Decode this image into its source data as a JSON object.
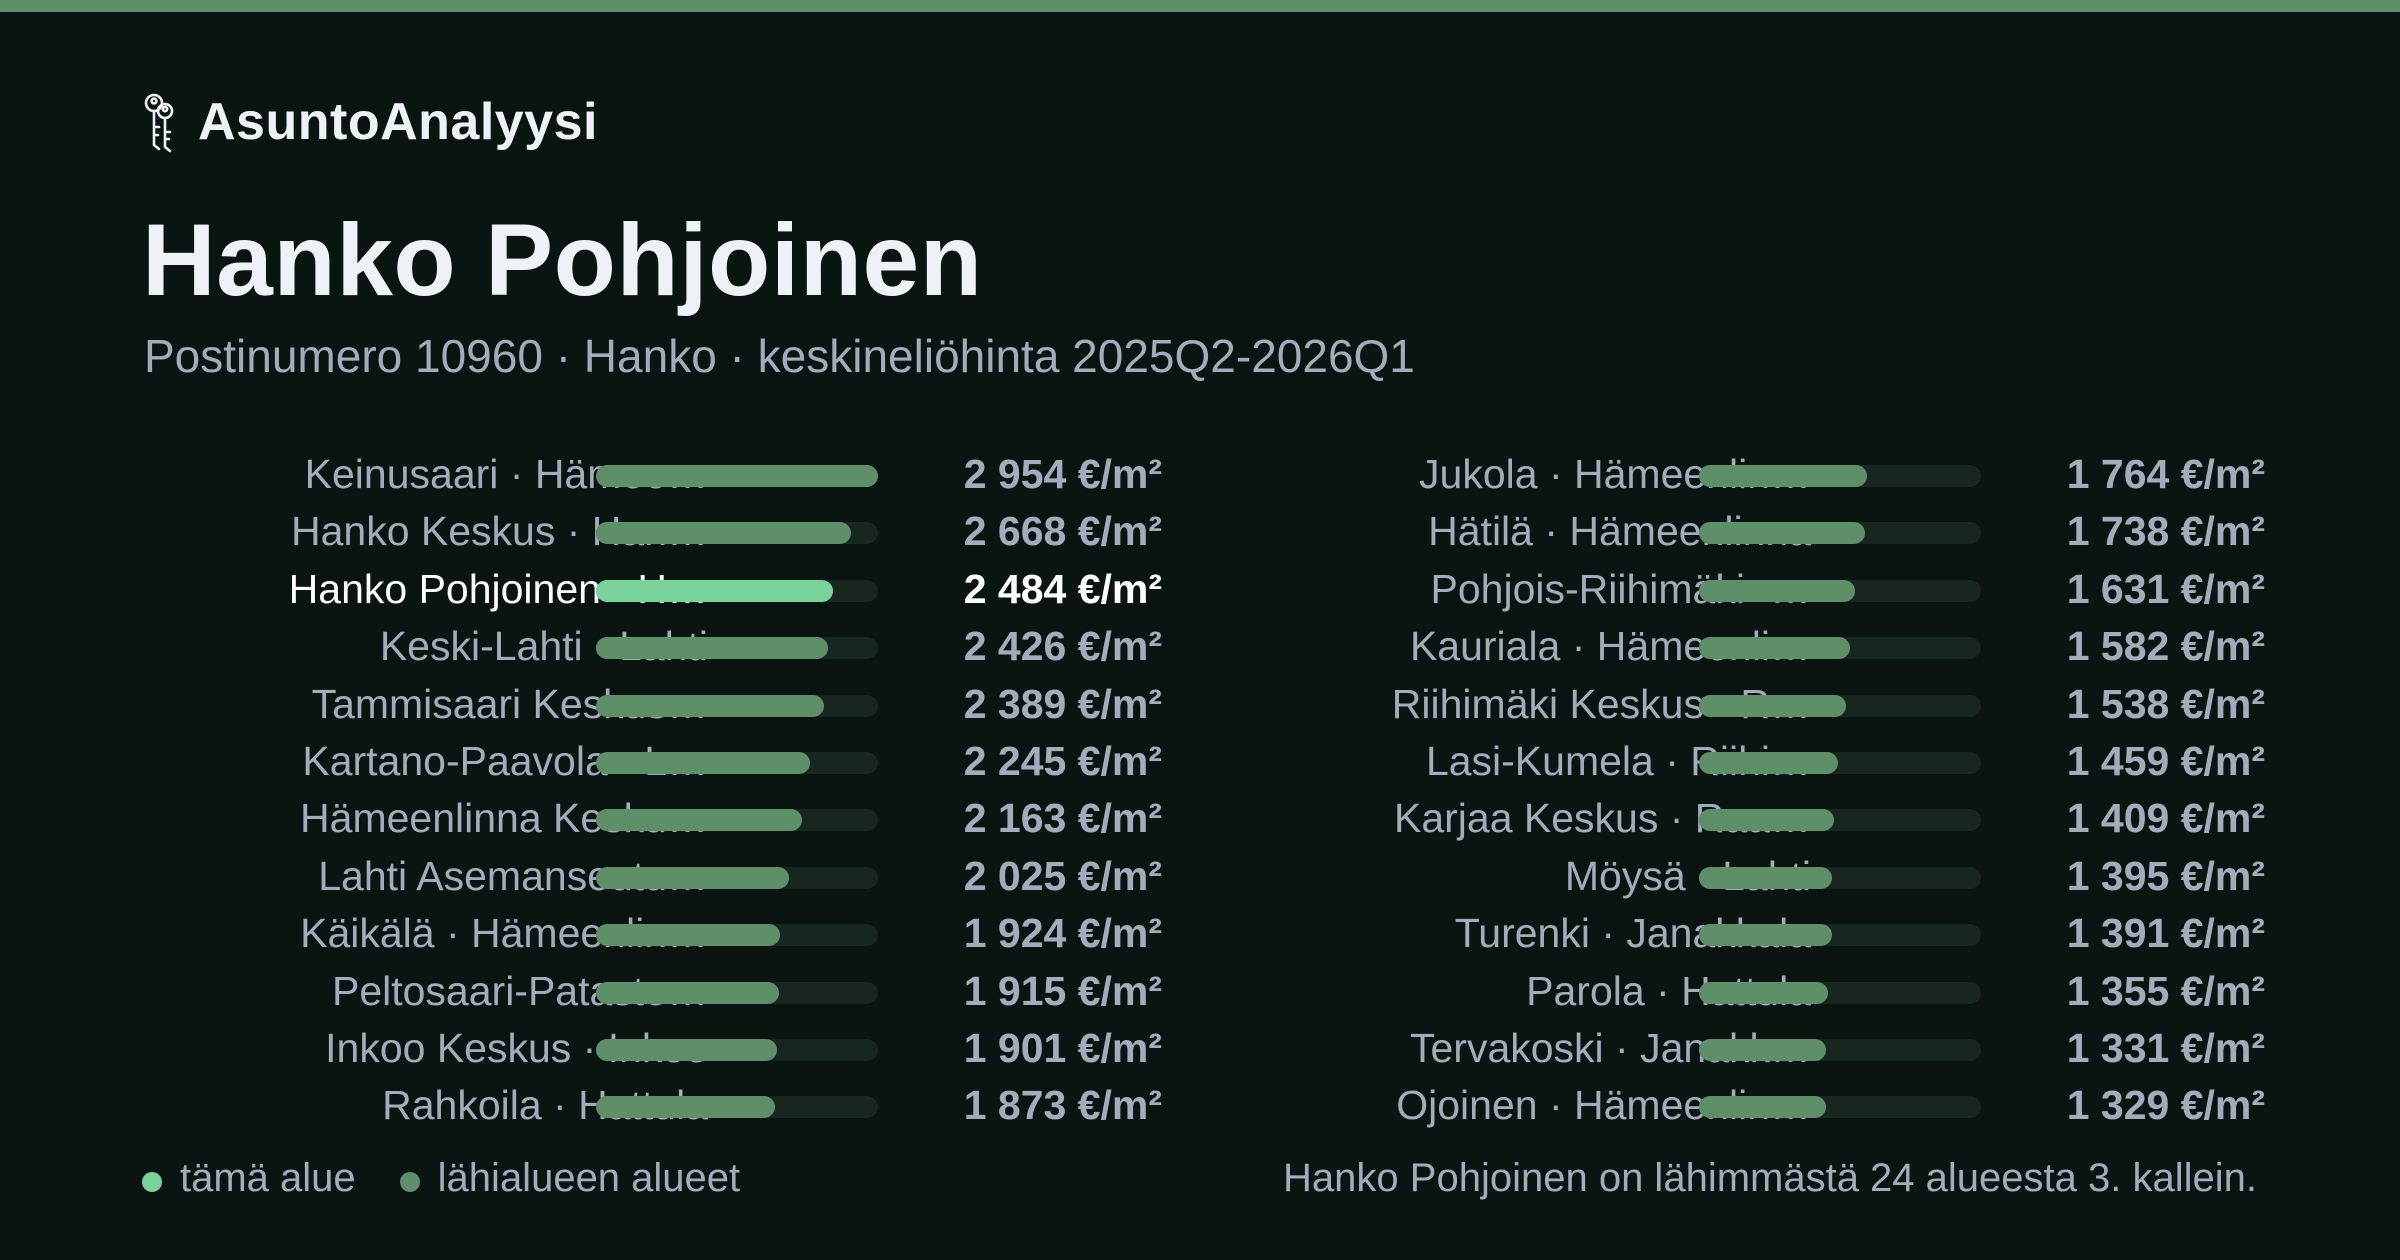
{
  "brand": {
    "name": "AsuntoAnalyysi",
    "icon": "keys-icon"
  },
  "header": {
    "title": "Hanko Pohjoinen",
    "subtitle": "Postinumero 10960 · Hanko · keskineliöhinta 2025Q2-2026Q1"
  },
  "colors": {
    "background": "#0a1512",
    "accent": "#5e8f69",
    "highlight": "#79d39a",
    "track": "#17261f",
    "text": "#a2acbd",
    "title": "#eef1f6"
  },
  "chart_data": {
    "type": "bar",
    "orientation": "horizontal",
    "unit": "€/m²",
    "xlim": [
      0,
      2954
    ],
    "highlight_index": 2,
    "columns": 2,
    "categories": [
      "Keinusaari · Hämee…",
      "Hanko Keskus · Han…",
      "Hanko Pohjoinen · H…",
      "Keski-Lahti · Lahti",
      "Tammisaari Keskus…",
      "Kartano-Paavola · L…",
      "Hämeenlinna Kesku…",
      "Lahti Asemanseutu…",
      "Käikälä · Hämeenlin…",
      "Peltosaari-Pataste…",
      "Inkoo Keskus · Inkoo",
      "Rahkoila · Hattula",
      "Jukola · Hämeenlin…",
      "Hätilä · Hämeenlinna",
      "Pohjois-Riihimäki ·…",
      "Kauriala · Hämeenli…",
      "Riihimäki Keskus · R…",
      "Lasi-Kumela · Riihi…",
      "Karjaa Keskus · Raa…",
      "Möysä · Lahti",
      "Turenki · Janakkala",
      "Parola · Hattula",
      "Tervakoski · Janakk…",
      "Ojoinen · Hämeenlin…"
    ],
    "values": [
      2954,
      2668,
      2484,
      2426,
      2389,
      2245,
      2163,
      2025,
      1924,
      1915,
      1901,
      1873,
      1764,
      1738,
      1631,
      1582,
      1538,
      1459,
      1409,
      1395,
      1391,
      1355,
      1331,
      1329
    ],
    "value_labels": [
      "2 954 €/m²",
      "2 668 €/m²",
      "2 484 €/m²",
      "2 426 €/m²",
      "2 389 €/m²",
      "2 245 €/m²",
      "2 163 €/m²",
      "2 025 €/m²",
      "1 924 €/m²",
      "1 915 €/m²",
      "1 901 €/m²",
      "1 873 €/m²",
      "1 764 €/m²",
      "1 738 €/m²",
      "1 631 €/m²",
      "1 582 €/m²",
      "1 538 €/m²",
      "1 459 €/m²",
      "1 409 €/m²",
      "1 395 €/m²",
      "1 391 €/m²",
      "1 355 €/m²",
      "1 331 €/m²",
      "1 329 €/m²"
    ],
    "legend": [
      {
        "label": "tämä alue",
        "color": "#79d39a"
      },
      {
        "label": "lähialueen alueet",
        "color": "#5e8f69"
      }
    ]
  },
  "footnote": "Hanko Pohjoinen on lähimmästä 24 alueesta 3. kallein."
}
